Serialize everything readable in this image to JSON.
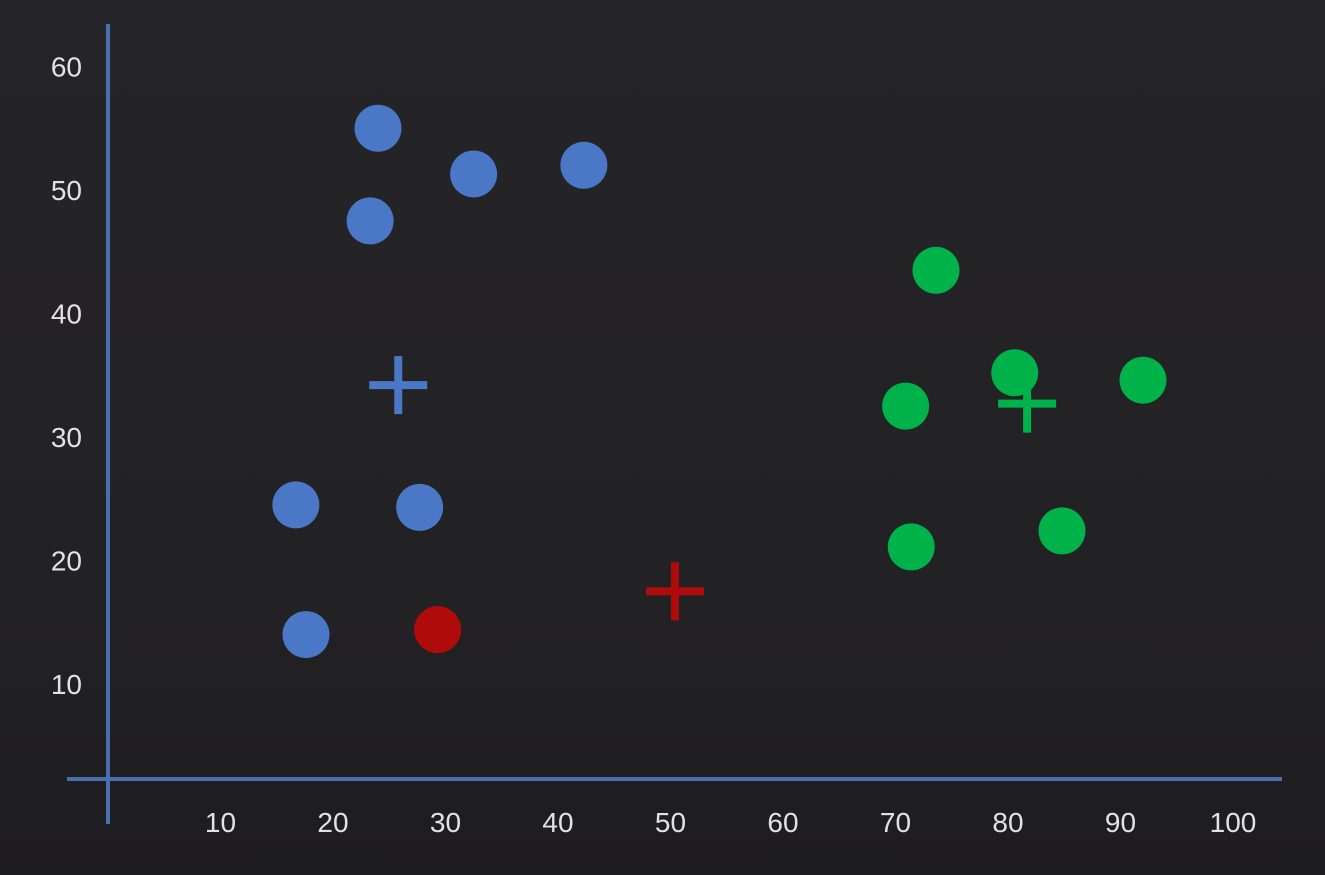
{
  "chart_data": {
    "type": "scatter",
    "title": "",
    "xlabel": "",
    "ylabel": "",
    "xlim": [
      0,
      104
    ],
    "ylim": [
      2,
      64
    ],
    "grid": false,
    "legend": "none",
    "x_ticks": [
      {
        "value": 10,
        "label": "10"
      },
      {
        "value": 20,
        "label": "20"
      },
      {
        "value": 30,
        "label": "30"
      },
      {
        "value": 40,
        "label": "40"
      },
      {
        "value": 50,
        "label": "50"
      },
      {
        "value": 60,
        "label": "60"
      },
      {
        "value": 70,
        "label": "70"
      },
      {
        "value": 80,
        "label": "80"
      },
      {
        "value": 90,
        "label": "90"
      },
      {
        "value": 100,
        "label": "100"
      }
    ],
    "y_ticks": [
      {
        "value": 10,
        "label": "10"
      },
      {
        "value": 20,
        "label": "20"
      },
      {
        "value": 30,
        "label": "30"
      },
      {
        "value": 40,
        "label": "40"
      },
      {
        "value": 50,
        "label": "50"
      },
      {
        "value": 60,
        "label": "60"
      }
    ],
    "axis_color": "#4a6fb0",
    "series": [
      {
        "color": "#4a78c6",
        "marker": "circle",
        "points": [
          {
            "x": 24,
            "y": 55
          },
          {
            "x": 32.5,
            "y": 51.3
          },
          {
            "x": 42.3,
            "y": 52
          },
          {
            "x": 23.3,
            "y": 47.5
          },
          {
            "x": 16.7,
            "y": 24.5
          },
          {
            "x": 27.7,
            "y": 24.3
          },
          {
            "x": 17.6,
            "y": 14
          }
        ]
      },
      {
        "color": "#00b24a",
        "marker": "circle",
        "points": [
          {
            "x": 73.6,
            "y": 43.5
          },
          {
            "x": 80.6,
            "y": 35.2
          },
          {
            "x": 92,
            "y": 34.6
          },
          {
            "x": 70.9,
            "y": 32.5
          },
          {
            "x": 71.4,
            "y": 21.1
          },
          {
            "x": 84.8,
            "y": 22.4
          }
        ]
      },
      {
        "color": "#b00b0b",
        "marker": "circle",
        "points": [
          {
            "x": 29.3,
            "y": 14.4
          }
        ]
      }
    ],
    "centroids": [
      {
        "color": "#4a78c6",
        "marker": "plus",
        "x": 25.8,
        "y": 34.2
      },
      {
        "color": "#00b24a",
        "marker": "plus",
        "x": 81.7,
        "y": 32.7
      },
      {
        "color": "#b00b0b",
        "marker": "plus",
        "x": 50.4,
        "y": 17.5
      }
    ]
  }
}
